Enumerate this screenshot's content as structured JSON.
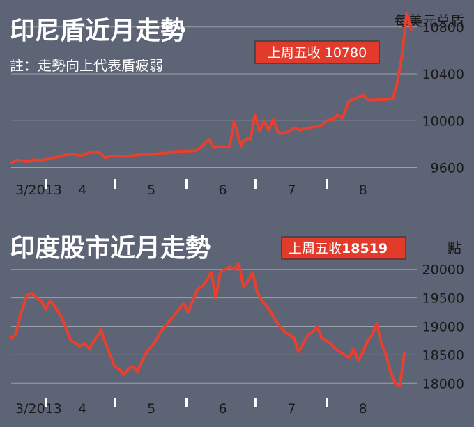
{
  "colors": {
    "background": "#5d6475",
    "line": "#e8402e",
    "badge": "#e23b2c",
    "grid": "#9aa0ac",
    "tick": "#ffffff",
    "text": "#ffffff",
    "label": "#1a1a1a"
  },
  "chart_data": [
    {
      "type": "line",
      "title": "印尼盾近月走勢",
      "subtitle": "註：走勢向上代表盾疲弱",
      "ylabel": "每美元兑盾",
      "badge": "上周五收 10780",
      "ylim": [
        9520,
        10900
      ],
      "yticks": [
        "9600",
        "10000",
        "10400",
        "10800"
      ],
      "ytick_values": [
        9600,
        10000,
        10400,
        10800
      ],
      "xtick_labels": [
        "3/2013",
        "4",
        "5",
        "6",
        "7",
        "8"
      ],
      "xtick_positions": [
        0,
        31,
        61,
        92,
        122,
        153
      ],
      "x_end": 174,
      "grid": "horizontal",
      "legend": "none",
      "series": [
        {
          "x": [
            0,
            3,
            7,
            10,
            13,
            16,
            20,
            24,
            28,
            30,
            34,
            38,
            41,
            44,
            48,
            52,
            56,
            60,
            64,
            70,
            76,
            80,
            82,
            86,
            88,
            91,
            93,
            95,
            97,
            100,
            101,
            103,
            104,
            106,
            108,
            110,
            112,
            114,
            116,
            118,
            121,
            123,
            126,
            128,
            130,
            133,
            135,
            137,
            140,
            142,
            144,
            147,
            150,
            153,
            155,
            157,
            159,
            161,
            163,
            166,
            168,
            170,
            172,
            174
          ],
          "y": [
            9640,
            9665,
            9650,
            9668,
            9660,
            9675,
            9690,
            9710,
            9715,
            9700,
            9728,
            9730,
            9685,
            9700,
            9695,
            9700,
            9710,
            9712,
            9720,
            9730,
            9740,
            9745,
            9760,
            9840,
            9770,
            9780,
            9775,
            9780,
            10000,
            9780,
            9830,
            9850,
            9840,
            10050,
            9910,
            10000,
            9920,
            10010,
            9900,
            9890,
            9910,
            9940,
            9920,
            9935,
            9940,
            9950,
            9960,
            10000,
            10010,
            10050,
            10020,
            10170,
            10190,
            10220,
            10180,
            10175,
            10180,
            10180,
            10180,
            10190,
            10330,
            10560,
            10920,
            10780
          ]
        }
      ]
    },
    {
      "type": "line",
      "title": "印度股市近月走勢",
      "ylabel": "點",
      "badge_prefix": "上周五收",
      "badge_value": "18519",
      "ylim": [
        17600,
        20400
      ],
      "yticks": [
        "18000",
        "18500",
        "19000",
        "19500",
        "20000"
      ],
      "ytick_values": [
        18000,
        18500,
        19000,
        19500,
        20000
      ],
      "xtick_labels": [
        "3/2013",
        "4",
        "5",
        "6",
        "7",
        "8"
      ],
      "xtick_positions": [
        0,
        31,
        61,
        92,
        122,
        153
      ],
      "x_end": 174,
      "grid": "horizontal",
      "legend": "none",
      "series": [
        {
          "x": [
            0,
            2,
            4,
            7,
            9,
            11,
            13,
            15,
            17,
            19,
            22,
            24,
            26,
            28,
            30,
            32,
            34,
            36,
            38,
            39,
            41,
            43,
            45,
            47,
            49,
            51,
            53,
            55,
            57,
            59,
            61,
            63,
            65,
            67,
            69,
            71,
            73,
            75,
            77,
            79,
            81,
            83,
            85,
            87,
            89,
            91,
            93,
            95,
            97,
            99,
            101,
            103,
            105,
            107,
            109,
            111,
            113,
            115,
            117,
            119,
            121,
            123,
            125,
            127,
            129,
            131,
            133,
            135,
            137,
            139,
            141,
            143,
            145,
            147,
            149,
            151,
            153,
            155,
            157,
            159,
            161,
            163,
            165,
            167,
            169,
            171
          ],
          "y": [
            18800,
            18850,
            19200,
            19550,
            19580,
            19500,
            19450,
            19300,
            19450,
            19350,
            19150,
            18950,
            18750,
            18700,
            18650,
            18700,
            18600,
            18750,
            18850,
            18950,
            18700,
            18500,
            18300,
            18250,
            18150,
            18250,
            18300,
            18200,
            18400,
            18550,
            18650,
            18750,
            18900,
            19000,
            19100,
            19200,
            19300,
            19400,
            19250,
            19450,
            19650,
            19700,
            19800,
            19950,
            19500,
            19950,
            20000,
            20050,
            20000,
            20100,
            19700,
            19800,
            19950,
            19600,
            19450,
            19350,
            19250,
            19100,
            19000,
            18900,
            18850,
            18800,
            18550,
            18700,
            18850,
            18900,
            19000,
            18800,
            18750,
            18700,
            18600,
            18550,
            18500,
            18450,
            18600,
            18400,
            18550,
            18750,
            18850,
            19050,
            18700,
            18500,
            18200,
            18000,
            17950,
            18519
          ]
        }
      ]
    }
  ]
}
